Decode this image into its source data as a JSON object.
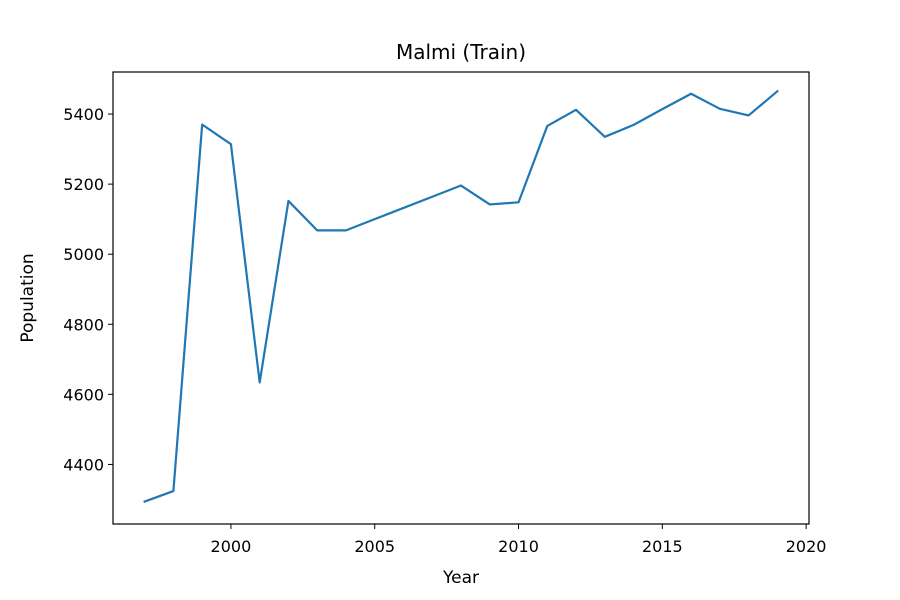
{
  "chart_data": {
    "type": "line",
    "title": "Malmi (Train)",
    "xlabel": "Year",
    "ylabel": "Population",
    "xlim": [
      1995.9,
      2020.1
    ],
    "ylim": [
      4230,
      5520
    ],
    "xticks": [
      2000,
      2005,
      2010,
      2015,
      2020
    ],
    "yticks": [
      4400,
      4600,
      4800,
      5000,
      5200,
      5400
    ],
    "grid": false,
    "legend": "none",
    "series": [
      {
        "color": "#1f77b4",
        "x": [
          1997,
          1998,
          1999,
          2000,
          2001,
          2002,
          2003,
          2004,
          2005,
          2006,
          2007,
          2008,
          2009,
          2010,
          2011,
          2012,
          2013,
          2014,
          2015,
          2016,
          2017,
          2018,
          2019
        ],
        "y": [
          4294,
          4324,
          5370,
          5314,
          4634,
          5152,
          5068,
          5068,
          5100,
          5132,
          5164,
          5196,
          5142,
          5148,
          5366,
          5412,
          5335,
          5369,
          5414,
          5458,
          5415,
          5396,
          5465
        ]
      }
    ]
  }
}
